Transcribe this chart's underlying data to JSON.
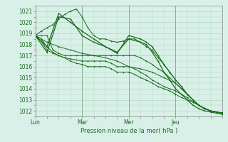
{
  "xlabel": "Pression niveau de la mer( hPa )",
  "ylim": [
    1011.5,
    1021.5
  ],
  "xlim": [
    0,
    96
  ],
  "bg_color": "#d8f0e8",
  "grid_color": "#b0d8c0",
  "line_color": "#1a6b1a",
  "tick_color": "#1a6b1a",
  "day_ticks": [
    0,
    24,
    48,
    72
  ],
  "day_labels": [
    "Lun",
    "Mar",
    "Mer",
    "Jeu"
  ],
  "yticks": [
    1012,
    1013,
    1014,
    1015,
    1016,
    1017,
    1018,
    1019,
    1020,
    1021
  ],
  "series": [
    [
      0,
      1018.8,
      3,
      1019.2,
      6,
      1019.5,
      9,
      1019.8,
      12,
      1020.3,
      15,
      1020.7,
      18,
      1021.0,
      21,
      1021.2,
      24,
      1020.5,
      27,
      1019.5,
      30,
      1018.8,
      33,
      1018.5,
      36,
      1018.5,
      39,
      1018.3,
      42,
      1018.2,
      45,
      1018.3,
      48,
      1018.5,
      51,
      1018.5,
      54,
      1018.2,
      57,
      1017.8,
      60,
      1017.5,
      63,
      1016.8,
      66,
      1016.2,
      69,
      1015.5,
      72,
      1014.8,
      75,
      1014.2,
      78,
      1013.5,
      81,
      1013.0,
      84,
      1012.5,
      87,
      1012.2,
      90,
      1012.0,
      93,
      1011.9,
      96,
      1011.8
    ],
    [
      0,
      1018.8,
      3,
      1018.8,
      6,
      1018.8,
      9,
      1017.5,
      12,
      1017.2,
      15,
      1017.0,
      18,
      1017.0,
      21,
      1017.0,
      24,
      1017.0,
      27,
      1017.0,
      30,
      1017.0,
      33,
      1017.0,
      36,
      1017.0,
      39,
      1017.0,
      42,
      1017.0,
      45,
      1017.0,
      48,
      1017.0,
      51,
      1017.0,
      54,
      1016.8,
      57,
      1016.5,
      60,
      1016.2,
      63,
      1015.8,
      66,
      1015.5,
      69,
      1015.0,
      72,
      1014.5,
      75,
      1014.0,
      78,
      1013.5,
      81,
      1013.0,
      84,
      1012.5,
      87,
      1012.2,
      90,
      1012.0,
      93,
      1011.9,
      96,
      1011.8
    ],
    [
      0,
      1018.8,
      3,
      1018.5,
      6,
      1017.8,
      9,
      1017.3,
      12,
      1017.0,
      15,
      1016.8,
      18,
      1016.7,
      21,
      1016.6,
      24,
      1016.5,
      27,
      1016.5,
      30,
      1016.5,
      33,
      1016.5,
      36,
      1016.5,
      39,
      1016.3,
      42,
      1016.0,
      45,
      1016.0,
      48,
      1016.0,
      51,
      1015.8,
      54,
      1015.5,
      57,
      1015.2,
      60,
      1014.8,
      63,
      1014.5,
      66,
      1014.2,
      69,
      1014.0,
      72,
      1013.8,
      75,
      1013.5,
      78,
      1013.2,
      81,
      1012.8,
      84,
      1012.5,
      87,
      1012.2,
      90,
      1012.0,
      93,
      1011.9,
      96,
      1011.8
    ],
    [
      0,
      1018.8,
      3,
      1018.3,
      6,
      1017.5,
      9,
      1017.2,
      12,
      1017.0,
      15,
      1016.8,
      18,
      1016.5,
      21,
      1016.3,
      24,
      1016.2,
      27,
      1016.0,
      30,
      1016.0,
      33,
      1016.0,
      36,
      1016.0,
      39,
      1015.8,
      42,
      1015.5,
      45,
      1015.5,
      48,
      1015.5,
      51,
      1015.3,
      54,
      1015.0,
      57,
      1014.8,
      60,
      1014.5,
      63,
      1014.2,
      66,
      1014.0,
      69,
      1013.8,
      72,
      1013.5,
      75,
      1013.2,
      78,
      1013.0,
      81,
      1012.8,
      84,
      1012.5,
      87,
      1012.2,
      90,
      1012.0,
      93,
      1011.9,
      96,
      1011.8
    ],
    [
      0,
      1018.8,
      6,
      1018.2,
      12,
      1017.8,
      18,
      1017.5,
      24,
      1017.2,
      30,
      1017.0,
      36,
      1016.8,
      42,
      1016.5,
      48,
      1016.0,
      54,
      1015.8,
      60,
      1015.5,
      66,
      1015.0,
      72,
      1014.5,
      78,
      1013.5,
      84,
      1012.5,
      90,
      1012.0,
      96,
      1011.8
    ],
    [
      0,
      1018.8,
      6,
      1017.3,
      12,
      1020.5,
      18,
      1020.3,
      24,
      1018.8,
      30,
      1018.2,
      36,
      1017.8,
      42,
      1017.3,
      48,
      1018.5,
      54,
      1018.2,
      57,
      1018.0,
      60,
      1017.3,
      63,
      1016.5,
      66,
      1015.5,
      69,
      1014.8,
      72,
      1014.0,
      75,
      1013.5,
      78,
      1013.0,
      81,
      1012.5,
      84,
      1012.2,
      87,
      1012.0,
      90,
      1011.9,
      93,
      1011.8,
      96,
      1011.7
    ],
    [
      0,
      1018.8,
      6,
      1017.8,
      12,
      1020.8,
      18,
      1020.0,
      24,
      1019.2,
      30,
      1018.5,
      36,
      1017.8,
      42,
      1017.2,
      48,
      1018.8,
      54,
      1018.5,
      57,
      1018.2,
      60,
      1017.8,
      63,
      1017.0,
      66,
      1016.2,
      69,
      1015.5,
      72,
      1014.8,
      75,
      1014.2,
      78,
      1013.5,
      81,
      1013.0,
      84,
      1012.5,
      87,
      1012.2,
      90,
      1012.0,
      93,
      1011.9,
      96,
      1011.8
    ]
  ]
}
